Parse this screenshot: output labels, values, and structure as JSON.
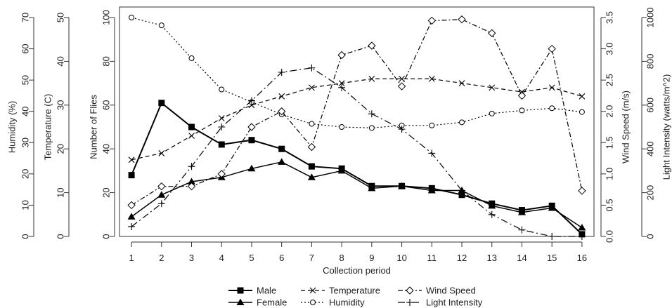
{
  "chart_data": {
    "type": "line",
    "xlabel": "Collection period",
    "x": [
      1,
      2,
      3,
      4,
      5,
      6,
      7,
      8,
      9,
      10,
      11,
      12,
      13,
      14,
      15,
      16
    ],
    "axes": {
      "flies": {
        "label": "Number of Flies",
        "ticks": [
          0,
          20,
          40,
          60,
          80,
          100
        ],
        "ylim": [
          0,
          100
        ]
      },
      "temperature": {
        "label": "Temperature (C)",
        "ticks": [
          0,
          10,
          20,
          30,
          40,
          50
        ],
        "ylim": [
          0,
          50
        ]
      },
      "humidity": {
        "label": "Humidity (%)",
        "ticks": [
          0,
          10,
          20,
          30,
          40,
          50,
          60,
          70
        ],
        "ylim": [
          0,
          70
        ]
      },
      "wind": {
        "label": "Wind Speed (m/s)",
        "ticks": [
          "0.0",
          "0.5",
          "1.0",
          "1.5",
          "2.0",
          "2.5",
          "3.0",
          "3.5"
        ],
        "ylim": [
          0,
          3.5
        ]
      },
      "light": {
        "label": "Light Intensity (watts/m^2)",
        "ticks": [
          0,
          200,
          400,
          600,
          800,
          1000
        ],
        "ylim": [
          0,
          1000
        ]
      }
    },
    "series": [
      {
        "name": "Male",
        "axis": "flies",
        "marker": "square-filled",
        "dash": "solid",
        "width": 2,
        "values": [
          28,
          61,
          50,
          42,
          44,
          40,
          32,
          31,
          23,
          23,
          22,
          19,
          15,
          12,
          14,
          1
        ]
      },
      {
        "name": "Female",
        "axis": "flies",
        "marker": "triangle-filled",
        "dash": "solid",
        "width": 1.5,
        "values": [
          9,
          19,
          25,
          27,
          31,
          34,
          27,
          30,
          22,
          23,
          21,
          21,
          14,
          11,
          13,
          4
        ]
      },
      {
        "name": "Temperature",
        "axis": "temperature",
        "marker": "x",
        "dash": "dashed",
        "width": 1.2,
        "values": [
          17.5,
          19,
          23,
          27,
          30,
          32,
          34,
          35,
          36,
          36,
          36,
          35,
          34,
          33,
          34,
          32
        ]
      },
      {
        "name": "Humidity",
        "axis": "humidity",
        "marker": "circle-open",
        "dash": "dotted",
        "width": 1.2,
        "values": [
          70,
          67.5,
          57,
          47,
          43,
          39,
          36,
          35,
          34.7,
          35.5,
          35.5,
          36.5,
          39.3,
          40.3,
          41,
          39.8
        ]
      },
      {
        "name": "Wind Speed",
        "axis": "wind",
        "marker": "diamond-open",
        "dash": "dashdot",
        "width": 1.2,
        "values": [
          0.5,
          0.8,
          0.8,
          1.0,
          1.75,
          2.0,
          1.43,
          2.9,
          3.05,
          2.4,
          3.45,
          3.47,
          3.25,
          2.25,
          3.0,
          0.73
        ]
      },
      {
        "name": "Light Intensity",
        "axis": "light",
        "marker": "plus",
        "dash": "longdash",
        "width": 1.2,
        "values": [
          45,
          150,
          320,
          500,
          620,
          750,
          770,
          680,
          560,
          490,
          380,
          210,
          100,
          30,
          0,
          0
        ]
      }
    ],
    "legend": {
      "position": "bottom",
      "columns": 3
    }
  }
}
